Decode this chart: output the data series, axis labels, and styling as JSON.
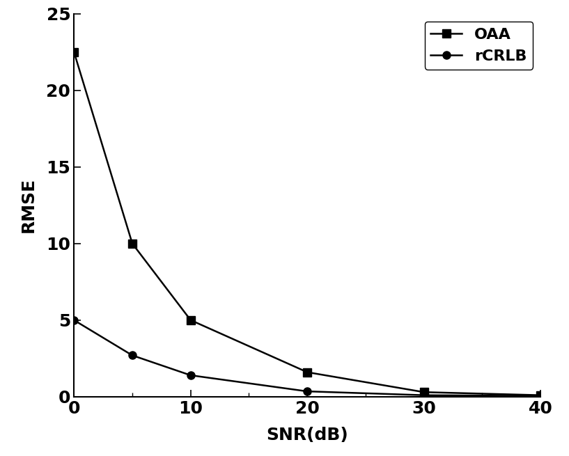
{
  "oaa_x": [
    0,
    5,
    10,
    20,
    30,
    40
  ],
  "oaa_y": [
    22.5,
    10.0,
    5.0,
    1.6,
    0.3,
    0.1
  ],
  "rcrlb_x": [
    0,
    5,
    10,
    20,
    30,
    40
  ],
  "rcrlb_y": [
    5.0,
    2.7,
    1.4,
    0.35,
    0.1,
    0.05
  ],
  "oaa_label": "OAA",
  "rcrlb_label": "rCRLB",
  "xlabel": "SNR(dB)",
  "ylabel": "RMSE",
  "xlim": [
    0,
    40
  ],
  "ylim": [
    0,
    25
  ],
  "xticks_major": [
    0,
    10,
    20,
    30,
    40
  ],
  "xticks_minor": [
    5,
    15,
    25,
    35
  ],
  "yticks": [
    0,
    5,
    10,
    15,
    20,
    25
  ],
  "line_color": "#000000",
  "marker_oaa": "s",
  "marker_rcrlb": "o",
  "marker_size": 8,
  "linewidth": 1.8,
  "legend_loc": "upper right",
  "label_fontsize": 18,
  "tick_fontsize": 18,
  "legend_fontsize": 16,
  "background_color": "#ffffff"
}
